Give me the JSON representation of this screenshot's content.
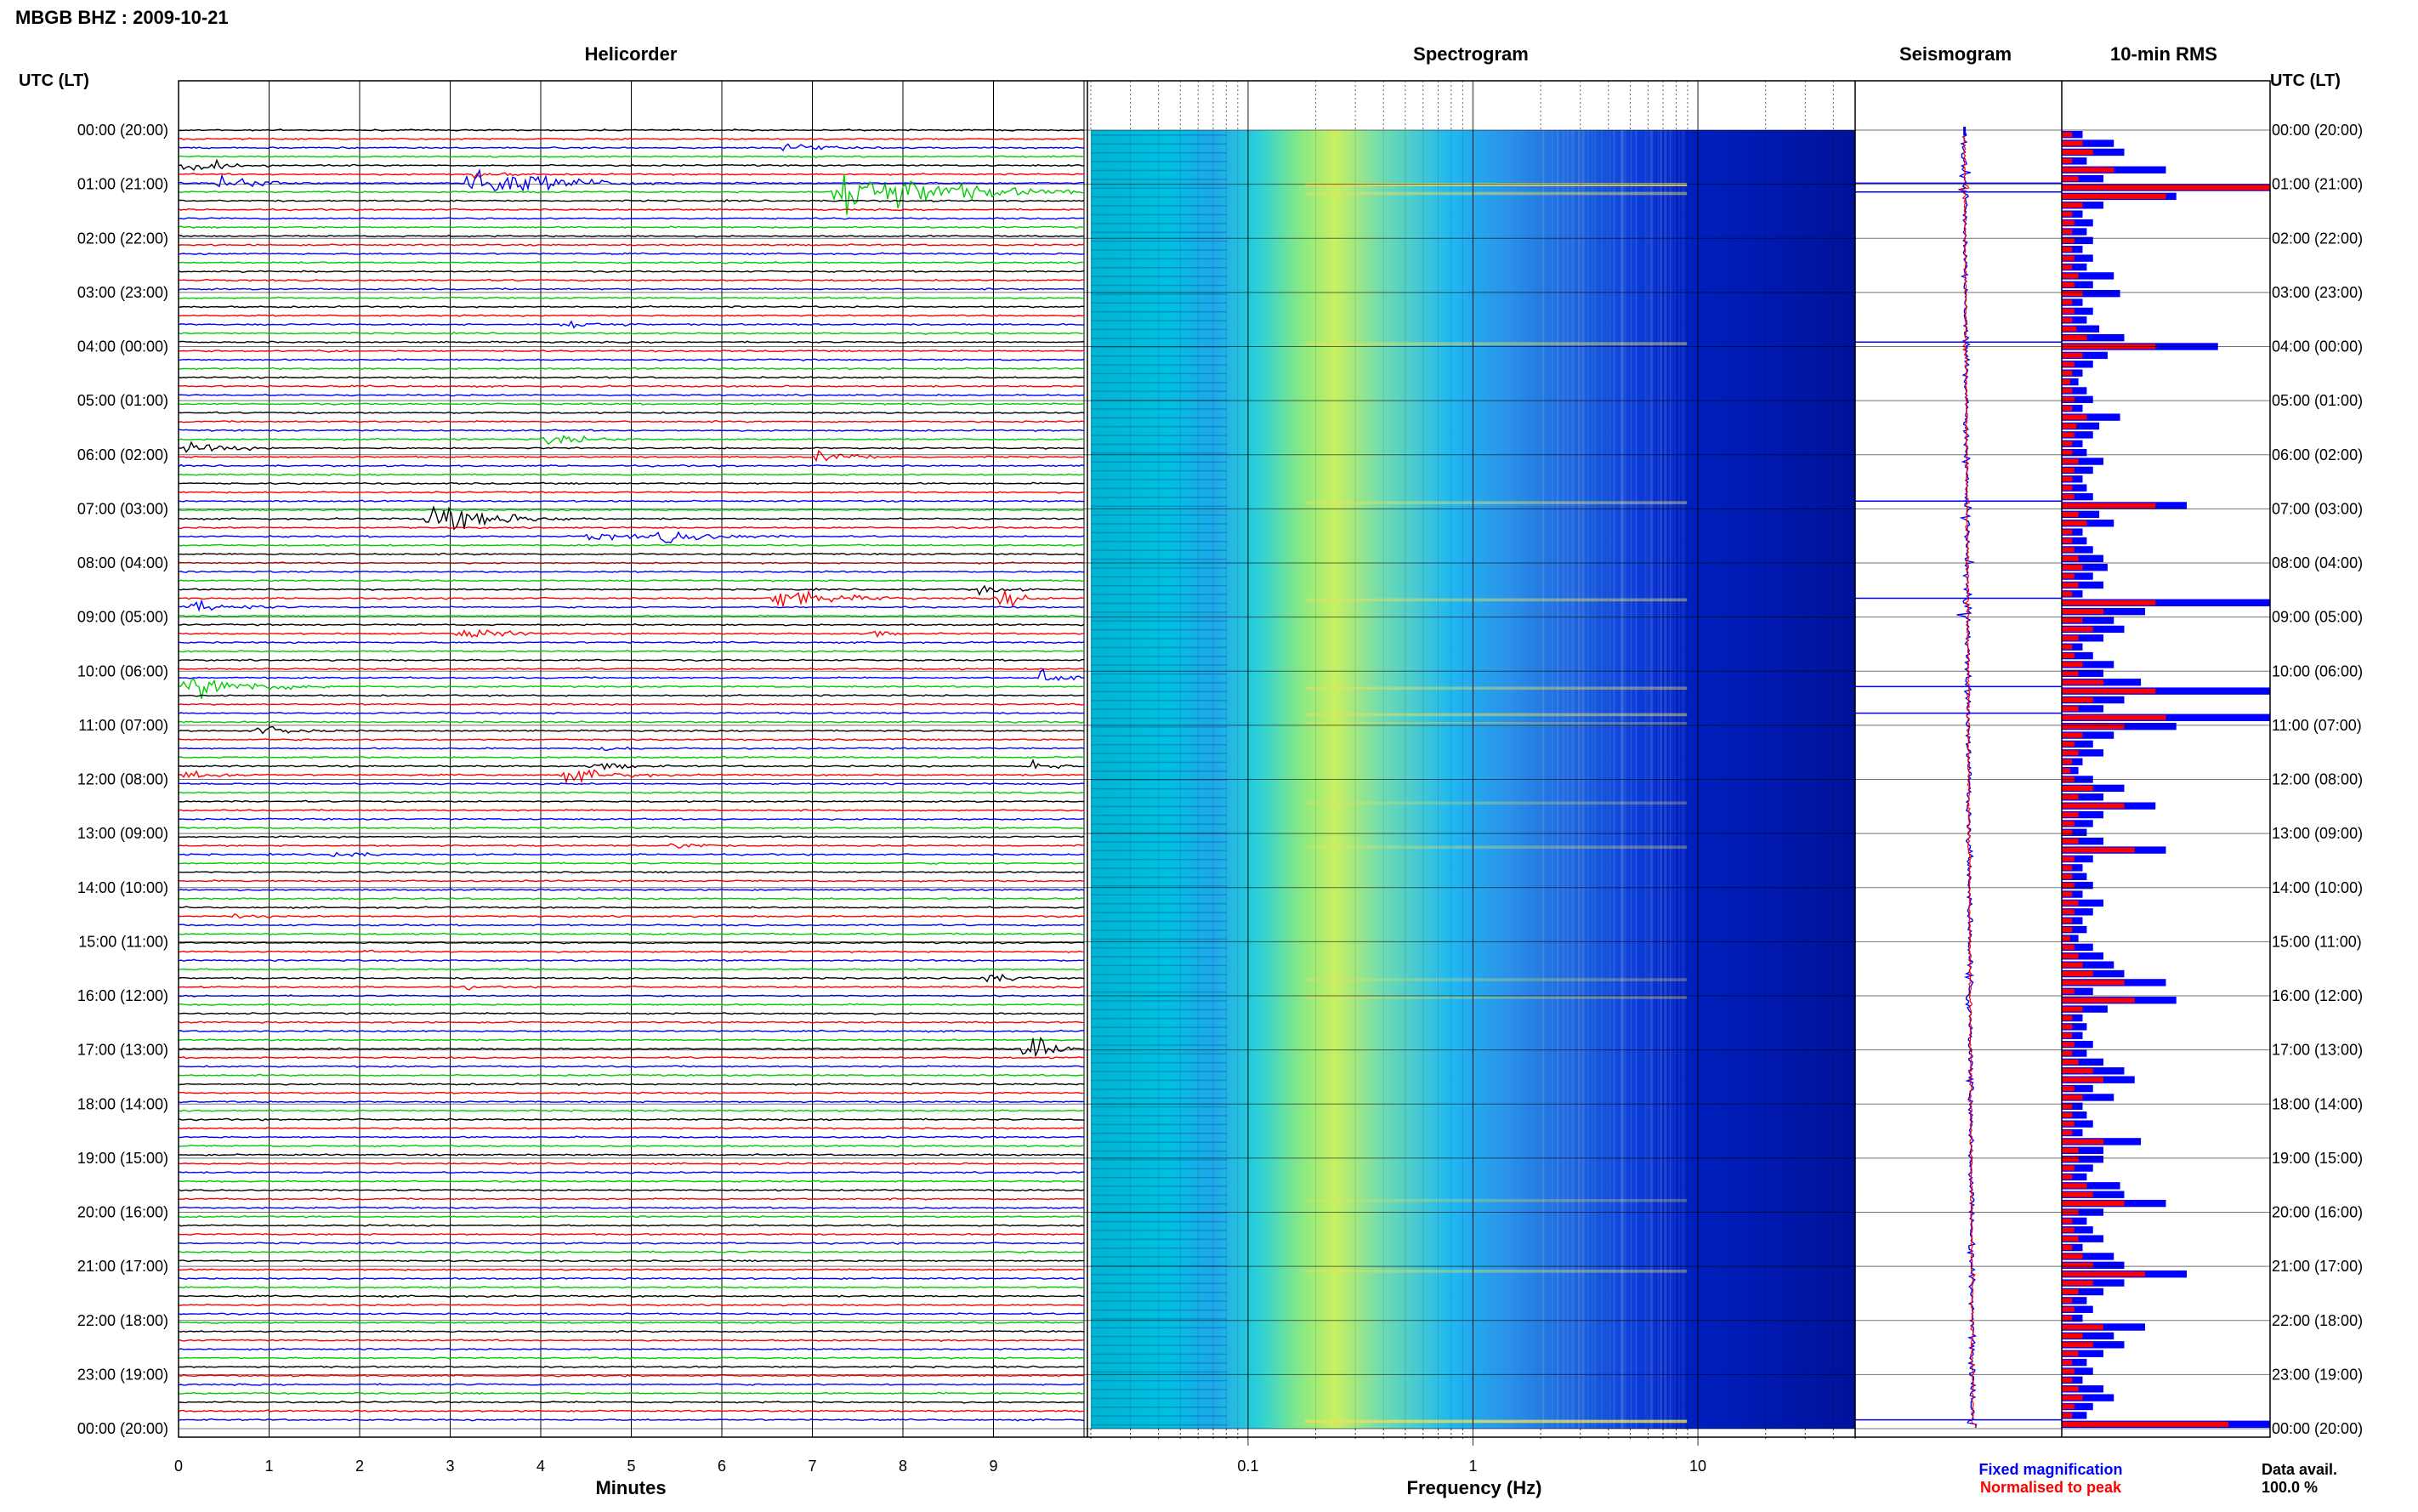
{
  "header": {
    "station_title": "MBGB BHZ : 2009-10-21",
    "utc_label_left": "UTC (LT)",
    "utc_label_right": "UTC (LT)"
  },
  "panels": {
    "helicorder_title": "Helicorder",
    "spectrogram_title": "Spectrogram",
    "seismogram_title": "Seismogram",
    "rms_title": "10-min RMS"
  },
  "axes": {
    "helicorder_xlabel": "Minutes",
    "spectrogram_xlabel": "Frequency (Hz)"
  },
  "legend": {
    "fixed_label": "Fixed magnification",
    "normalised_label": "Normalised to peak",
    "fixed_color": "#0000ff",
    "normalised_color": "#ff0000"
  },
  "footer": {
    "data_avail_label": "Data avail.",
    "data_avail_value": "100.0 %"
  },
  "chart_data": {
    "type": "helicorder",
    "hour_labels": [
      "00:00 (20:00)",
      "01:00 (21:00)",
      "02:00 (22:00)",
      "03:00 (23:00)",
      "04:00 (00:00)",
      "05:00 (01:00)",
      "06:00 (02:00)",
      "07:00 (03:00)",
      "08:00 (04:00)",
      "09:00 (05:00)",
      "10:00 (06:00)",
      "11:00 (07:00)",
      "12:00 (08:00)",
      "13:00 (09:00)",
      "14:00 (10:00)",
      "15:00 (11:00)",
      "16:00 (12:00)",
      "17:00 (13:00)",
      "18:00 (14:00)",
      "19:00 (15:00)",
      "20:00 (16:00)",
      "21:00 (17:00)",
      "22:00 (18:00)",
      "23:00 (19:00)",
      "00:00 (20:00)"
    ],
    "minutes_ticks": [
      "0",
      "1",
      "2",
      "3",
      "4",
      "5",
      "6",
      "7",
      "8",
      "9"
    ],
    "minutes_range": [
      0,
      10
    ],
    "trace_colors": [
      "#000000",
      "#ff0000",
      "#0000ff",
      "#00cc00"
    ],
    "freq_ticks": [
      "0.1",
      "1",
      "10"
    ],
    "freq_range": [
      0.02,
      50
    ],
    "freq_scale": "log",
    "rms_fixed": [
      0.1,
      0.25,
      0.3,
      0.12,
      0.5,
      0.2,
      1.0,
      0.55,
      0.2,
      0.1,
      0.15,
      0.12,
      0.15,
      0.1,
      0.15,
      0.12,
      0.25,
      0.15,
      0.28,
      0.1,
      0.15,
      0.12,
      0.18,
      0.3,
      0.75,
      0.22,
      0.15,
      0.1,
      0.08,
      0.12,
      0.15,
      0.1,
      0.28,
      0.18,
      0.15,
      0.1,
      0.12,
      0.2,
      0.15,
      0.1,
      0.12,
      0.15,
      0.6,
      0.18,
      0.25,
      0.1,
      0.12,
      0.15,
      0.2,
      0.22,
      0.15,
      0.2,
      0.1,
      1.0,
      0.4,
      0.25,
      0.3,
      0.2,
      0.1,
      0.15,
      0.25,
      0.2,
      0.38,
      1.0,
      0.3,
      0.2,
      1.0,
      0.55,
      0.25,
      0.15,
      0.2,
      0.1,
      0.08,
      0.15,
      0.3,
      0.2,
      0.45,
      0.2,
      0.15,
      0.12,
      0.2,
      0.5,
      0.15,
      0.1,
      0.12,
      0.15,
      0.1,
      0.2,
      0.15,
      0.1,
      0.12,
      0.08,
      0.15,
      0.2,
      0.25,
      0.3,
      0.5,
      0.15,
      0.55,
      0.22,
      0.1,
      0.12,
      0.1,
      0.15,
      0.12,
      0.2,
      0.3,
      0.35,
      0.15,
      0.25,
      0.1,
      0.12,
      0.15,
      0.1,
      0.38,
      0.2,
      0.2,
      0.15,
      0.12,
      0.28,
      0.3,
      0.5,
      0.2,
      0.12,
      0.15,
      0.2,
      0.1,
      0.25,
      0.3,
      0.6,
      0.3,
      0.2,
      0.12,
      0.15,
      0.1,
      0.4,
      0.25,
      0.3,
      0.2,
      0.12,
      0.15,
      0.1,
      0.2,
      0.25,
      0.15,
      0.12,
      1.0
    ],
    "rms_normalised": [
      0.05,
      0.1,
      0.15,
      0.05,
      0.25,
      0.08,
      1.0,
      0.5,
      0.1,
      0.05,
      0.06,
      0.05,
      0.06,
      0.05,
      0.06,
      0.05,
      0.08,
      0.06,
      0.1,
      0.05,
      0.06,
      0.05,
      0.07,
      0.12,
      0.45,
      0.1,
      0.06,
      0.05,
      0.04,
      0.05,
      0.06,
      0.05,
      0.12,
      0.07,
      0.06,
      0.05,
      0.05,
      0.08,
      0.06,
      0.05,
      0.05,
      0.06,
      0.45,
      0.08,
      0.12,
      0.05,
      0.05,
      0.06,
      0.08,
      0.1,
      0.06,
      0.08,
      0.05,
      0.45,
      0.2,
      0.1,
      0.15,
      0.08,
      0.05,
      0.06,
      0.1,
      0.08,
      0.2,
      0.45,
      0.15,
      0.08,
      0.5,
      0.3,
      0.1,
      0.06,
      0.08,
      0.05,
      0.04,
      0.06,
      0.15,
      0.08,
      0.3,
      0.08,
      0.06,
      0.05,
      0.08,
      0.35,
      0.06,
      0.05,
      0.05,
      0.06,
      0.05,
      0.08,
      0.06,
      0.05,
      0.05,
      0.04,
      0.06,
      0.08,
      0.1,
      0.15,
      0.3,
      0.06,
      0.35,
      0.1,
      0.05,
      0.05,
      0.05,
      0.06,
      0.05,
      0.08,
      0.15,
      0.2,
      0.06,
      0.1,
      0.05,
      0.05,
      0.06,
      0.05,
      0.2,
      0.08,
      0.08,
      0.06,
      0.05,
      0.12,
      0.15,
      0.3,
      0.08,
      0.05,
      0.06,
      0.08,
      0.05,
      0.1,
      0.15,
      0.4,
      0.15,
      0.08,
      0.05,
      0.06,
      0.05,
      0.2,
      0.1,
      0.15,
      0.08,
      0.05,
      0.06,
      0.05,
      0.08,
      0.1,
      0.06,
      0.05,
      0.8
    ],
    "events": [
      {
        "row": 2,
        "minute": 6.6,
        "duration": 1.3,
        "amp": 0.5
      },
      {
        "row": 4,
        "minute": 0.0,
        "duration": 1.3,
        "amp": 0.9
      },
      {
        "row": 5,
        "minute": 3.2,
        "duration": 1.2,
        "amp": 0.4
      },
      {
        "row": 6,
        "minute": 0.4,
        "duration": 1.5,
        "amp": 0.8
      },
      {
        "row": 6,
        "minute": 3.1,
        "duration": 2.5,
        "amp": 1.8
      },
      {
        "row": 7,
        "minute": 7.2,
        "duration": 2.8,
        "amp": 3.0
      },
      {
        "row": 22,
        "minute": 4.2,
        "duration": 1.5,
        "amp": 0.5
      },
      {
        "row": 25,
        "minute": 1.5,
        "duration": 0.8,
        "amp": 0.3
      },
      {
        "row": 35,
        "minute": 4.0,
        "duration": 1.5,
        "amp": 0.6
      },
      {
        "row": 36,
        "minute": 0.0,
        "duration": 1.8,
        "amp": 0.5
      },
      {
        "row": 37,
        "minute": 7.0,
        "duration": 1.2,
        "amp": 0.8
      },
      {
        "row": 44,
        "minute": 2.7,
        "duration": 2.0,
        "amp": 1.6
      },
      {
        "row": 46,
        "minute": 5.2,
        "duration": 2.2,
        "amp": 0.7
      },
      {
        "row": 46,
        "minute": 4.4,
        "duration": 2.2,
        "amp": 0.4
      },
      {
        "row": 52,
        "minute": 8.8,
        "duration": 0.9,
        "amp": 0.6
      },
      {
        "row": 53,
        "minute": 6.5,
        "duration": 2.0,
        "amp": 1.0
      },
      {
        "row": 53,
        "minute": 9.0,
        "duration": 0.9,
        "amp": 1.0
      },
      {
        "row": 54,
        "minute": 0.0,
        "duration": 1.8,
        "amp": 0.6
      },
      {
        "row": 57,
        "minute": 3.0,
        "duration": 1.8,
        "amp": 0.6
      },
      {
        "row": 57,
        "minute": 7.6,
        "duration": 0.6,
        "amp": 0.5
      },
      {
        "row": 62,
        "minute": 9.5,
        "duration": 0.5,
        "amp": 1.5
      },
      {
        "row": 63,
        "minute": 0.0,
        "duration": 2.2,
        "amp": 1.2
      },
      {
        "row": 68,
        "minute": 0.8,
        "duration": 1.6,
        "amp": 0.5
      },
      {
        "row": 70,
        "minute": 4.6,
        "duration": 1.2,
        "amp": 0.3
      },
      {
        "row": 72,
        "minute": 4.5,
        "duration": 1.6,
        "amp": 0.4
      },
      {
        "row": 72,
        "minute": 9.4,
        "duration": 0.6,
        "amp": 1.0
      },
      {
        "row": 73,
        "minute": 4.2,
        "duration": 1.8,
        "amp": 0.7
      },
      {
        "row": 73,
        "minute": 0.0,
        "duration": 1.5,
        "amp": 0.5
      },
      {
        "row": 82,
        "minute": 1.6,
        "duration": 1.2,
        "amp": 0.5
      },
      {
        "row": 81,
        "minute": 5.4,
        "duration": 1.2,
        "amp": 0.4
      },
      {
        "row": 89,
        "minute": 0.5,
        "duration": 1.2,
        "amp": 0.3
      },
      {
        "row": 93,
        "minute": 2.0,
        "duration": 0.6,
        "amp": 0.2
      },
      {
        "row": 96,
        "minute": 8.8,
        "duration": 1.2,
        "amp": 0.6
      },
      {
        "row": 97,
        "minute": 3.1,
        "duration": 0.6,
        "amp": 0.3
      },
      {
        "row": 104,
        "minute": 9.3,
        "duration": 0.6,
        "amp": 2.5
      }
    ]
  }
}
